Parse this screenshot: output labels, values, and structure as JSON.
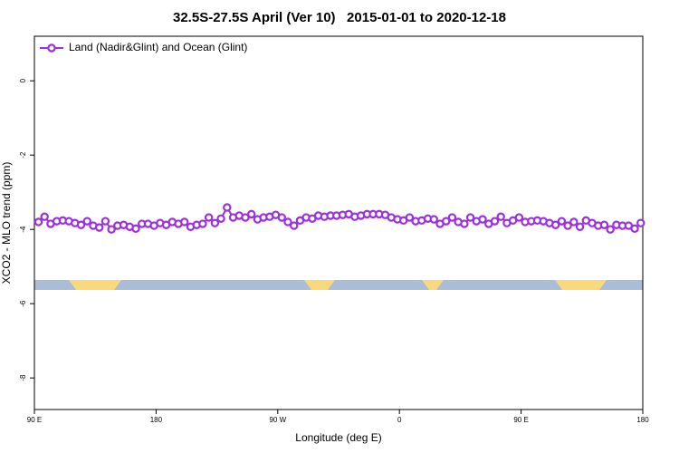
{
  "chart_data": {
    "type": "line",
    "title": "32.5S-27.5S April (Ver 10)   2015-01-01 to 2020-12-18",
    "xlabel": "Longitude (deg E)",
    "ylabel": "XCO2 - MLO trend (ppm)",
    "xlim": [
      90,
      540
    ],
    "xticks": [
      {
        "value": 90,
        "label": "90 E"
      },
      {
        "value": 180,
        "label": "180"
      },
      {
        "value": 270,
        "label": "90 W"
      },
      {
        "value": 360,
        "label": "0"
      },
      {
        "value": 450,
        "label": "90 E"
      },
      {
        "value": 540,
        "label": "180"
      }
    ],
    "ylim": [
      -8.85,
      1.2
    ],
    "yticks": [
      -8,
      -6,
      -4,
      -2,
      0
    ],
    "legend": "top-left",
    "x": [
      93,
      97.5,
      102,
      106.5,
      111,
      115.5,
      120,
      124.5,
      129,
      133.5,
      138,
      142.5,
      147,
      151.5,
      156,
      160.5,
      165,
      169.5,
      174,
      178.5,
      183,
      187.5,
      192,
      196.5,
      201,
      205.5,
      210,
      214.5,
      219,
      223.5,
      228,
      232.5,
      237,
      241.5,
      246,
      250.5,
      255,
      259.5,
      264,
      268.5,
      273,
      277.5,
      282,
      286.5,
      291,
      295.5,
      300,
      304.5,
      309,
      313.5,
      318,
      322.5,
      327,
      331.5,
      336,
      340.5,
      345,
      349.5,
      354,
      358.5,
      363,
      367.5,
      372,
      376.5,
      381,
      385.5,
      390,
      394.5,
      399,
      403.5,
      408,
      412.5,
      417,
      421.5,
      426,
      430.5,
      435,
      439.5,
      444,
      448.5,
      453,
      457.5,
      462,
      466.5,
      471,
      475.5,
      480,
      484.5,
      489,
      493.5,
      498,
      502.5,
      507,
      511.5,
      516,
      520.5,
      525,
      529.5,
      534,
      538.5
    ],
    "series": [
      {
        "name": "Land (Nadir&Glint) and Ocean (Glint)",
        "color": "#9b30e0",
        "values": [
          -3.8,
          -3.66,
          -3.85,
          -3.78,
          -3.76,
          -3.78,
          -3.83,
          -3.88,
          -3.78,
          -3.9,
          -3.95,
          -3.78,
          -4.0,
          -3.9,
          -3.88,
          -3.93,
          -3.98,
          -3.85,
          -3.85,
          -3.9,
          -3.83,
          -3.88,
          -3.8,
          -3.85,
          -3.8,
          -3.93,
          -3.88,
          -3.85,
          -3.68,
          -3.83,
          -3.71,
          -3.41,
          -3.68,
          -3.63,
          -3.68,
          -3.59,
          -3.73,
          -3.68,
          -3.66,
          -3.61,
          -3.68,
          -3.8,
          -3.9,
          -3.76,
          -3.68,
          -3.71,
          -3.63,
          -3.66,
          -3.63,
          -3.63,
          -3.61,
          -3.59,
          -3.66,
          -3.63,
          -3.59,
          -3.59,
          -3.59,
          -3.61,
          -3.68,
          -3.73,
          -3.76,
          -3.68,
          -3.78,
          -3.76,
          -3.71,
          -3.73,
          -3.85,
          -3.78,
          -3.68,
          -3.8,
          -3.85,
          -3.68,
          -3.78,
          -3.73,
          -3.85,
          -3.78,
          -3.66,
          -3.83,
          -3.76,
          -3.68,
          -3.8,
          -3.78,
          -3.76,
          -3.78,
          -3.83,
          -3.88,
          -3.78,
          -3.9,
          -3.8,
          -3.93,
          -3.76,
          -3.83,
          -3.9,
          -3.88,
          -4.0,
          -3.88,
          -3.9,
          -3.9,
          -3.98,
          -3.83
        ]
      }
    ]
  }
}
